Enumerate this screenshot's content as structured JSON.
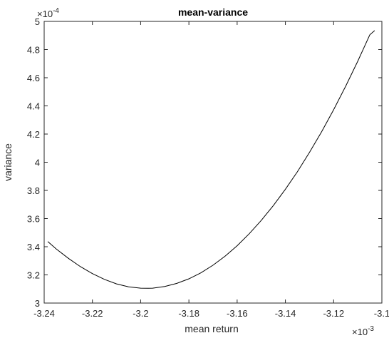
{
  "chart_data": {
    "type": "line",
    "title": "mean-variance",
    "xlabel": "mean return",
    "ylabel": "variance",
    "x_exponent_label": "×10",
    "x_exponent_power": "-3",
    "y_exponent_label": "×10",
    "y_exponent_power": "-4",
    "xlim": [
      -3.24,
      -3.1
    ],
    "ylim": [
      3,
      5
    ],
    "x_ticks": [
      -3.24,
      -3.22,
      -3.2,
      -3.18,
      -3.16,
      -3.14,
      -3.12,
      -3.1
    ],
    "x_tick_labels": [
      "-3.24",
      "-3.22",
      "-3.2",
      "-3.18",
      "-3.16",
      "-3.14",
      "-3.12",
      "-3.1"
    ],
    "y_ticks": [
      3,
      3.2,
      3.4,
      3.6,
      3.8,
      4,
      4.2,
      4.4,
      4.6,
      4.8,
      5
    ],
    "y_tick_labels": [
      "3",
      "3.2",
      "3.4",
      "3.6",
      "3.8",
      "4",
      "4.2",
      "4.4",
      "4.6",
      "4.8",
      "5"
    ],
    "grid": false,
    "colors": {
      "line": "#000000",
      "axis": "#262626"
    },
    "series": [
      {
        "x": [
          -3.2385,
          -3.235,
          -3.23,
          -3.225,
          -3.22,
          -3.215,
          -3.21,
          -3.205,
          -3.2,
          -3.1968,
          -3.195,
          -3.19,
          -3.185,
          -3.18,
          -3.175,
          -3.17,
          -3.165,
          -3.16,
          -3.155,
          -3.15,
          -3.145,
          -3.14,
          -3.135,
          -3.13,
          -3.125,
          -3.12,
          -3.115,
          -3.11,
          -3.105,
          -3.103
        ],
        "y": [
          3.437,
          3.384,
          3.318,
          3.259,
          3.209,
          3.168,
          3.136,
          3.115,
          3.106,
          3.105,
          3.106,
          3.118,
          3.14,
          3.172,
          3.215,
          3.269,
          3.333,
          3.407,
          3.492,
          3.587,
          3.692,
          3.808,
          3.933,
          4.07,
          4.216,
          4.373,
          4.54,
          4.717,
          4.905,
          4.935
        ]
      }
    ]
  }
}
